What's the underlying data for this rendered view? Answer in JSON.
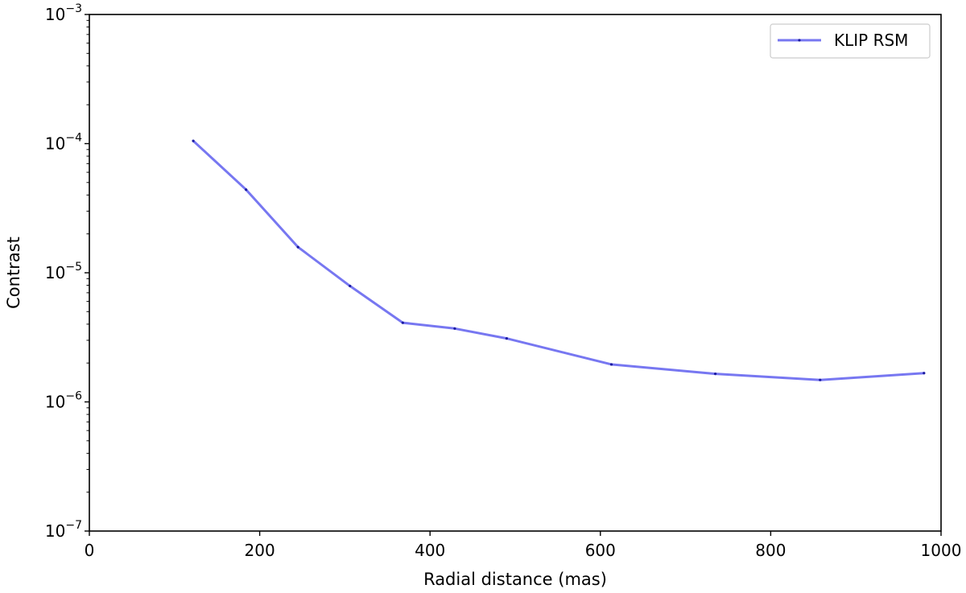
{
  "chart_data": {
    "type": "line",
    "xlabel": "Radial distance (mas)",
    "ylabel": "Contrast",
    "xlim": [
      0,
      1000
    ],
    "ylim": [
      1e-07,
      0.001
    ],
    "yscale": "log",
    "grid": false,
    "legend_position": "top-right",
    "x_ticks": [
      0,
      200,
      400,
      600,
      800,
      1000
    ],
    "x_tick_labels": [
      "0",
      "200",
      "400",
      "600",
      "800",
      "1000"
    ],
    "y_ticks": [
      {
        "value": 1e-07,
        "base": "10",
        "exp": "−7"
      },
      {
        "value": 1e-06,
        "base": "10",
        "exp": "−6"
      },
      {
        "value": 1e-05,
        "base": "10",
        "exp": "−5"
      },
      {
        "value": 0.0001,
        "base": "10",
        "exp": "−4"
      },
      {
        "value": 0.001,
        "base": "10",
        "exp": "−3"
      }
    ],
    "series": [
      {
        "name": "KLIP RSM",
        "color": "#5555ee",
        "marker_color": "#1a1aa0",
        "x": [
          122,
          184,
          245,
          306,
          368,
          429,
          490,
          613,
          735,
          858,
          980
        ],
        "y": [
          0.000105,
          4.4e-05,
          1.58e-05,
          7.9e-06,
          4.1e-06,
          3.7e-06,
          3.1e-06,
          1.95e-06,
          1.65e-06,
          1.48e-06,
          1.67e-06
        ]
      }
    ]
  }
}
